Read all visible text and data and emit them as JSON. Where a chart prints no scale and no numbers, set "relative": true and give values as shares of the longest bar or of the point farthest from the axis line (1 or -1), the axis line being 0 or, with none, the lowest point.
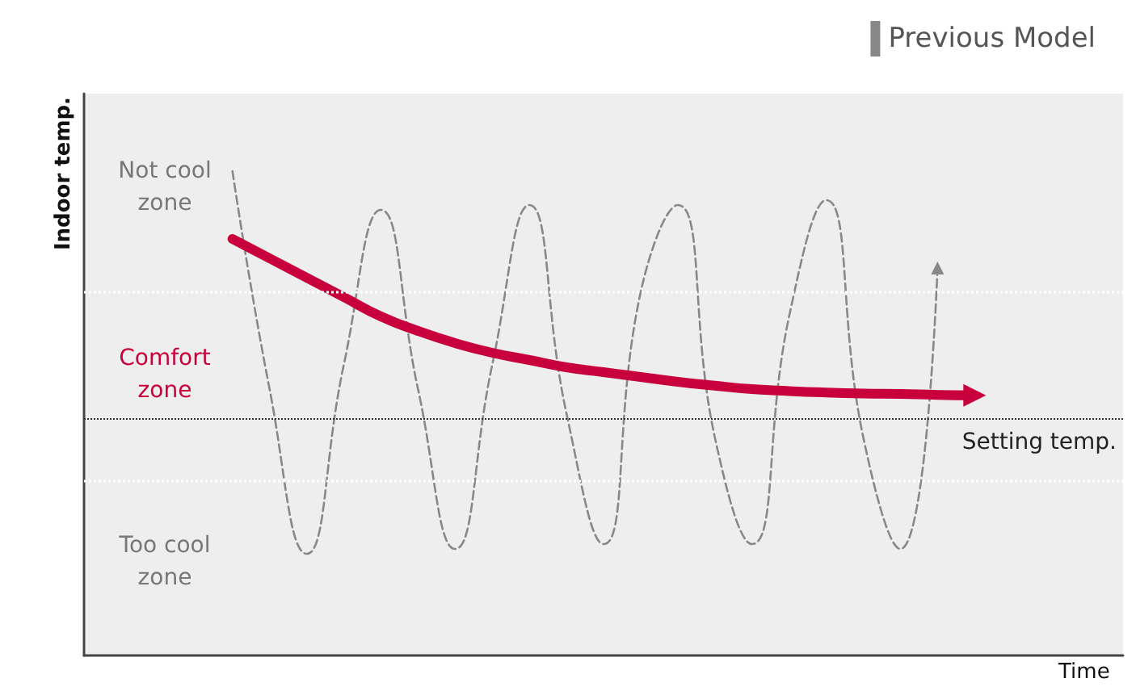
{
  "chart_data": {
    "type": "line",
    "relative": true,
    "xlabel": "Time",
    "ylabel": "Indoor temp.",
    "categories": [
      null,
      null,
      null,
      null,
      null,
      null,
      null,
      null,
      null,
      null,
      null,
      null,
      null,
      null,
      null,
      null,
      null,
      null,
      null,
      null,
      null,
      null,
      null,
      null,
      null,
      null,
      null,
      null,
      null
    ],
    "series": [
      {
        "name": "Previous Model",
        "color": "#888888",
        "line_style": "dashed",
        "values": [
          null,
          null,
          null,
          null,
          1.0,
          0.55,
          0.21,
          0.6,
          0.92,
          0.55,
          0.22,
          0.6,
          0.93,
          0.5,
          0.23,
          0.75,
          0.93,
          0.45,
          0.23,
          0.7,
          0.94,
          0.45,
          0.22,
          0.8,
          null,
          null,
          null,
          null,
          null
        ]
      },
      {
        "color": "#c8003c",
        "line_style": "solid",
        "values": [
          null,
          null,
          null,
          null,
          0.86,
          0.82,
          0.78,
          0.74,
          0.7,
          0.67,
          0.645,
          0.625,
          0.61,
          0.595,
          0.585,
          0.575,
          0.565,
          0.557,
          0.55,
          0.546,
          0.543,
          0.541,
          0.54,
          0.538,
          0.537,
          null,
          null,
          null,
          null
        ]
      }
    ],
    "annotations": [
      "Not cool\nzone",
      "Comfort\nzone",
      "Too cool\nzone"
    ],
    "ref_lines": [
      {
        "axis": "y",
        "value": 0.487,
        "label": "Setting temp.",
        "line_style": "dotted",
        "color": "#333333"
      },
      {
        "axis": "y",
        "value": 0.75,
        "line_style": "dotted",
        "color": "#ffffff"
      },
      {
        "axis": "y",
        "value": 0.36,
        "line_style": "dotted",
        "color": "#ffffff"
      }
    ],
    "legend": "top right",
    "grid": false
  }
}
